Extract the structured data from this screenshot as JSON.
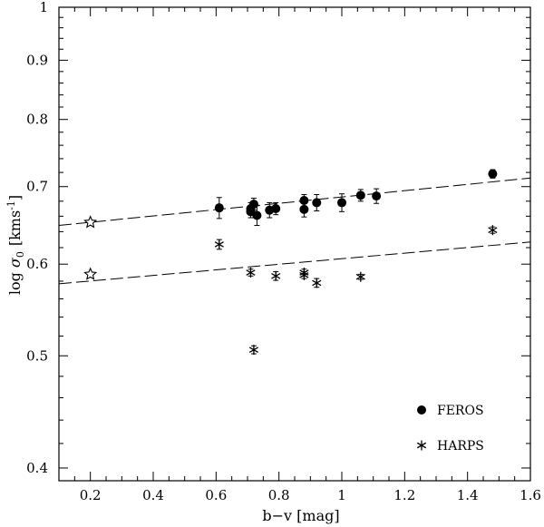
{
  "chart_data": {
    "type": "scatter",
    "xlabel": "b−v [mag]",
    "ylabel_text": "log",
    "ylabel_symbol": "σ",
    "ylabel_sub": "0",
    "ylabel_unit": "[kms",
    "ylabel_exp": "-1",
    "ylabel_close": "]",
    "xlim": [
      0.1,
      1.6
    ],
    "ylim": [
      0.39,
      1.0
    ],
    "y_scale": "log",
    "x_ticks": [
      0.2,
      0.4,
      0.6,
      0.8,
      1.0,
      1.2,
      1.4,
      1.6
    ],
    "x_tick_labels": [
      "0.2",
      "0.4",
      "0.6",
      "0.8",
      "1",
      "1.2",
      "1.4",
      "1.6"
    ],
    "y_ticks": [
      0.4,
      0.5,
      0.6,
      0.7,
      0.8,
      0.9,
      1.0
    ],
    "y_tick_labels": [
      "0.4",
      "0.5",
      "0.6",
      "0.7",
      "0.8",
      "0.9",
      "1"
    ],
    "grid": false,
    "legend_position": "bottom-right",
    "series": [
      {
        "name": "FEROS",
        "marker": "filled-circle",
        "x": [
          0.61,
          0.71,
          0.71,
          0.72,
          0.73,
          0.77,
          0.79,
          0.88,
          0.88,
          0.92,
          1.0,
          1.06,
          1.11,
          1.48
        ],
        "y": [
          0.671,
          0.67,
          0.666,
          0.676,
          0.661,
          0.668,
          0.67,
          0.681,
          0.669,
          0.678,
          0.678,
          0.688,
          0.687,
          0.718
        ],
        "err": [
          0.014,
          0.008,
          0.008,
          0.008,
          0.013,
          0.01,
          0.008,
          0.008,
          0.01,
          0.011,
          0.012,
          0.008,
          0.01,
          0.006
        ]
      },
      {
        "name": "HARPS",
        "marker": "asterisk",
        "x": [
          0.61,
          0.71,
          0.72,
          0.79,
          0.88,
          0.88,
          0.92,
          1.06,
          1.48
        ],
        "y": [
          0.624,
          0.59,
          0.506,
          0.586,
          0.59,
          0.587,
          0.578,
          0.585,
          0.642
        ],
        "err": [
          0.006,
          0.004,
          0.004,
          0.005,
          0.004,
          0.004,
          0.005,
          0.003,
          0.004
        ]
      }
    ],
    "reference_points": {
      "marker": "open-star",
      "x": [
        0.2,
        0.2
      ],
      "y": [
        0.652,
        0.588
      ]
    },
    "fit_lines": [
      {
        "style": "dashed",
        "x": [
          0.1,
          1.6
        ],
        "y": [
          0.648,
          0.712
        ]
      },
      {
        "style": "dashed",
        "x": [
          0.1,
          1.6
        ],
        "y": [
          0.577,
          0.627
        ]
      }
    ]
  }
}
